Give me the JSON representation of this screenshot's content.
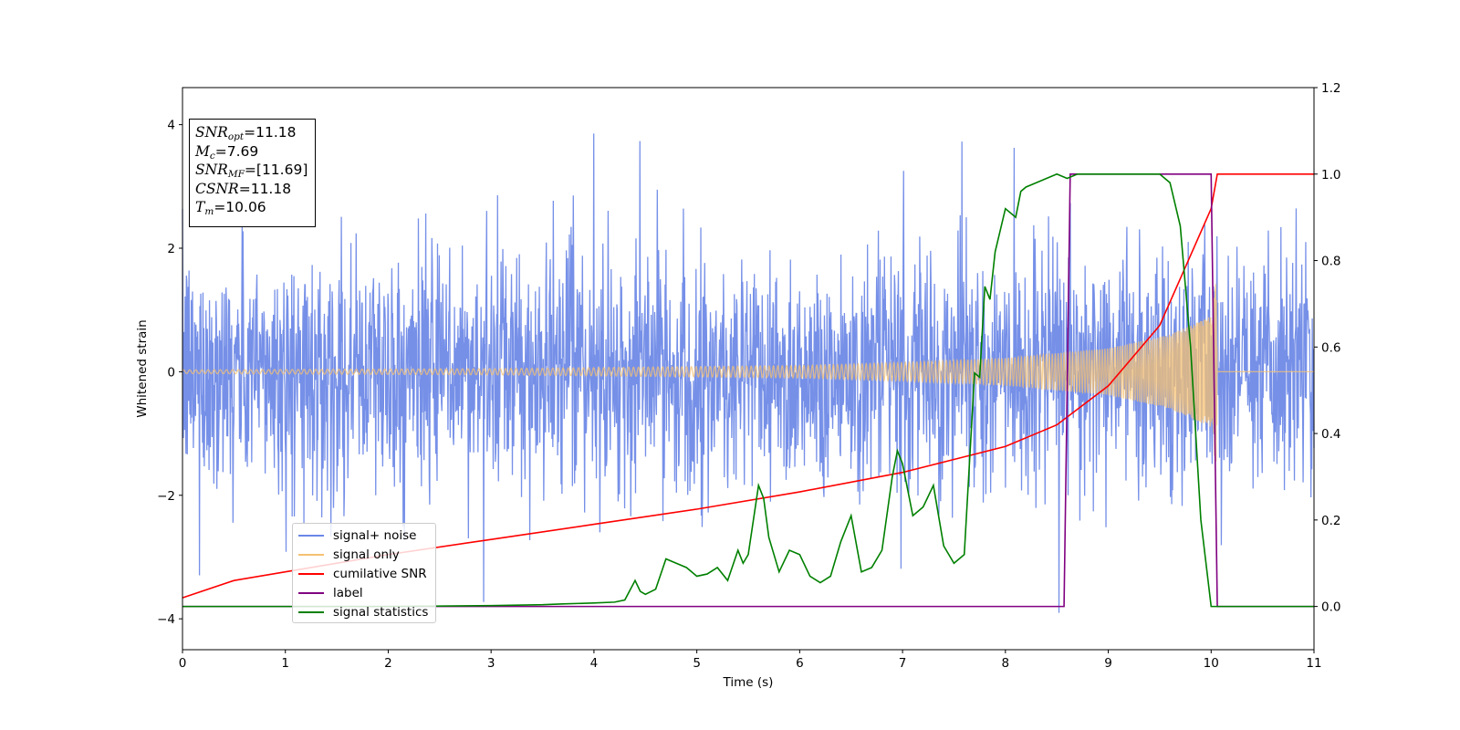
{
  "chart_data": {
    "type": "line",
    "xlabel": "Time (s)",
    "ylabel": "Whitened strain",
    "xlim": [
      0,
      11
    ],
    "ylim": [
      -4.5,
      4.6
    ],
    "y2lim": [
      -0.1,
      1.2
    ],
    "x_ticks": [
      "0",
      "1",
      "2",
      "3",
      "4",
      "5",
      "6",
      "7",
      "8",
      "9",
      "10",
      "11"
    ],
    "y_ticks": [
      "−4",
      "−2",
      "0",
      "2",
      "4"
    ],
    "y2_ticks": [
      "0.0",
      "0.2",
      "0.4",
      "0.6",
      "0.8",
      "1.0",
      "1.2"
    ],
    "grid": false,
    "legend_position": "lower-left",
    "series": [
      {
        "name": "signal+ noise",
        "axis": "left",
        "color": "#6a87e6",
        "description_kind": "noise",
        "x_range": [
          0,
          11
        ],
        "envelope": {
          "p99": [
            -2.5,
            2.5
          ],
          "extremes": [
            -4.05,
            4.18
          ]
        }
      },
      {
        "name": "signal only",
        "axis": "left",
        "color": "#f5c173",
        "description_kind": "chirp",
        "chirp_end_time": 10.06,
        "amplitude_points": [
          [
            0,
            0.03
          ],
          [
            3,
            0.05
          ],
          [
            6,
            0.1
          ],
          [
            7,
            0.15
          ],
          [
            8,
            0.22
          ],
          [
            9,
            0.38
          ],
          [
            9.6,
            0.6
          ],
          [
            10,
            0.9
          ],
          [
            10.05,
            1.6
          ],
          [
            10.06,
            0
          ]
        ]
      },
      {
        "name": "cumilative SNR",
        "axis": "right",
        "color": "#ff0000",
        "x": [
          0,
          0.5,
          1,
          2,
          3,
          4,
          5,
          6,
          7,
          7.5,
          8,
          8.5,
          9,
          9.5,
          10,
          10.06,
          11
        ],
        "y": [
          0.02,
          0.06,
          0.08,
          0.12,
          0.155,
          0.19,
          0.225,
          0.265,
          0.31,
          0.34,
          0.37,
          0.42,
          0.51,
          0.65,
          0.92,
          1.0,
          1.0
        ]
      },
      {
        "name": "label",
        "axis": "right",
        "color": "#800080",
        "x": [
          0,
          8.57,
          8.63,
          10.0,
          10.06,
          11
        ],
        "y": [
          0.0,
          0.0,
          1.0,
          1.0,
          0.0,
          0.0
        ]
      },
      {
        "name": "signal statistics",
        "axis": "right",
        "color": "#008000",
        "x": [
          0,
          1,
          2,
          3,
          3.5,
          3.7,
          4,
          4.2,
          4.3,
          4.4,
          4.45,
          4.5,
          4.6,
          4.7,
          4.8,
          4.9,
          5.0,
          5.1,
          5.2,
          5.3,
          5.4,
          5.45,
          5.5,
          5.55,
          5.6,
          5.65,
          5.7,
          5.8,
          5.9,
          6.0,
          6.1,
          6.2,
          6.3,
          6.4,
          6.5,
          6.6,
          6.7,
          6.8,
          6.9,
          6.95,
          7.0,
          7.1,
          7.2,
          7.3,
          7.4,
          7.5,
          7.6,
          7.7,
          7.75,
          7.8,
          7.85,
          7.9,
          8.0,
          8.1,
          8.15,
          8.2,
          8.3,
          8.4,
          8.5,
          8.6,
          8.7,
          8.8,
          9.0,
          9.5,
          9.6,
          9.7,
          9.8,
          9.9,
          10.0,
          10.05,
          10.1,
          11
        ],
        "y": [
          0.0,
          0.0,
          0.0,
          0.002,
          0.004,
          0.006,
          0.008,
          0.01,
          0.015,
          0.06,
          0.035,
          0.028,
          0.04,
          0.11,
          0.1,
          0.09,
          0.07,
          0.075,
          0.09,
          0.06,
          0.13,
          0.1,
          0.12,
          0.2,
          0.28,
          0.25,
          0.16,
          0.08,
          0.13,
          0.12,
          0.07,
          0.055,
          0.07,
          0.15,
          0.21,
          0.08,
          0.09,
          0.13,
          0.3,
          0.36,
          0.33,
          0.21,
          0.23,
          0.28,
          0.14,
          0.1,
          0.12,
          0.54,
          0.53,
          0.74,
          0.71,
          0.82,
          0.92,
          0.9,
          0.96,
          0.97,
          0.98,
          0.99,
          1.0,
          0.99,
          1.0,
          1.0,
          1.0,
          1.0,
          0.98,
          0.88,
          0.6,
          0.2,
          0.0,
          0.0,
          0.0,
          0.0
        ]
      }
    ]
  },
  "info_box": {
    "snr_opt_label": "SNR",
    "snr_opt_sub": "opt",
    "snr_opt_value": "=11.18",
    "mc_label": "M",
    "mc_sub": "c",
    "mc_value": "=7.69",
    "snr_mf_label": "SNR",
    "snr_mf_sub": "MF",
    "snr_mf_value": "=[11.69]",
    "csnr_label": "CSNR",
    "csnr_value": "=11.18",
    "tm_label": "T",
    "tm_sub": "m",
    "tm_value": "=10.06"
  }
}
